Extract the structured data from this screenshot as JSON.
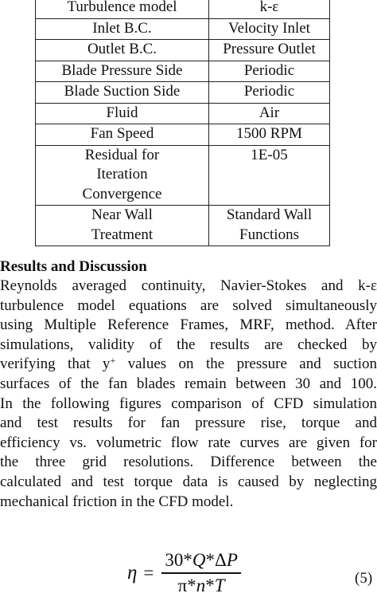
{
  "table": {
    "rows": [
      {
        "name": [
          "Turbulence model"
        ],
        "value": [
          "k-ε"
        ]
      },
      {
        "name": [
          "Inlet B.C."
        ],
        "value": [
          "Velocity Inlet"
        ]
      },
      {
        "name": [
          "Outlet B.C."
        ],
        "value": [
          "Pressure Outlet"
        ]
      },
      {
        "name": [
          "Blade Pressure Side"
        ],
        "value": [
          "Periodic"
        ]
      },
      {
        "name": [
          "Blade Suction Side"
        ],
        "value": [
          "Periodic"
        ]
      },
      {
        "name": [
          "Fluid"
        ],
        "value": [
          "Air"
        ]
      },
      {
        "name": [
          "Fan Speed"
        ],
        "value": [
          "1500 RPM"
        ]
      },
      {
        "name": [
          "Residual for",
          "Iteration",
          "Convergence"
        ],
        "value": [
          "1E-05"
        ]
      },
      {
        "name": [
          "Near Wall",
          "Treatment"
        ],
        "value": [
          "Standard Wall",
          "Functions"
        ]
      }
    ]
  },
  "section": {
    "heading": "Results and Discussion",
    "lines": [
      "Reynolds averaged continuity, Navier-Stokes and k-ε",
      "turbulence model equations are solved simultaneously",
      "using Multiple Reference Frames, MRF, method. After",
      "simulations, validity of the results are checked by",
      "verifying that y+ values on the pressure and suction",
      "surfaces of the fan blades remain between 30 and 100.",
      "In the following figures comparison of CFD simulation",
      "and test results for fan pressure rise, torque and",
      "efficiency vs. volumetric flow rate curves are given for",
      "the three grid resolutions. Difference between the",
      "calculated and test torque data is caused by neglecting",
      "mechanical friction in the CFD model."
    ]
  },
  "equation": {
    "lhs": "η",
    "equals": "=",
    "numerator": "30*Q*ΔP",
    "denominator": "π*n*T",
    "number": "(5)"
  }
}
